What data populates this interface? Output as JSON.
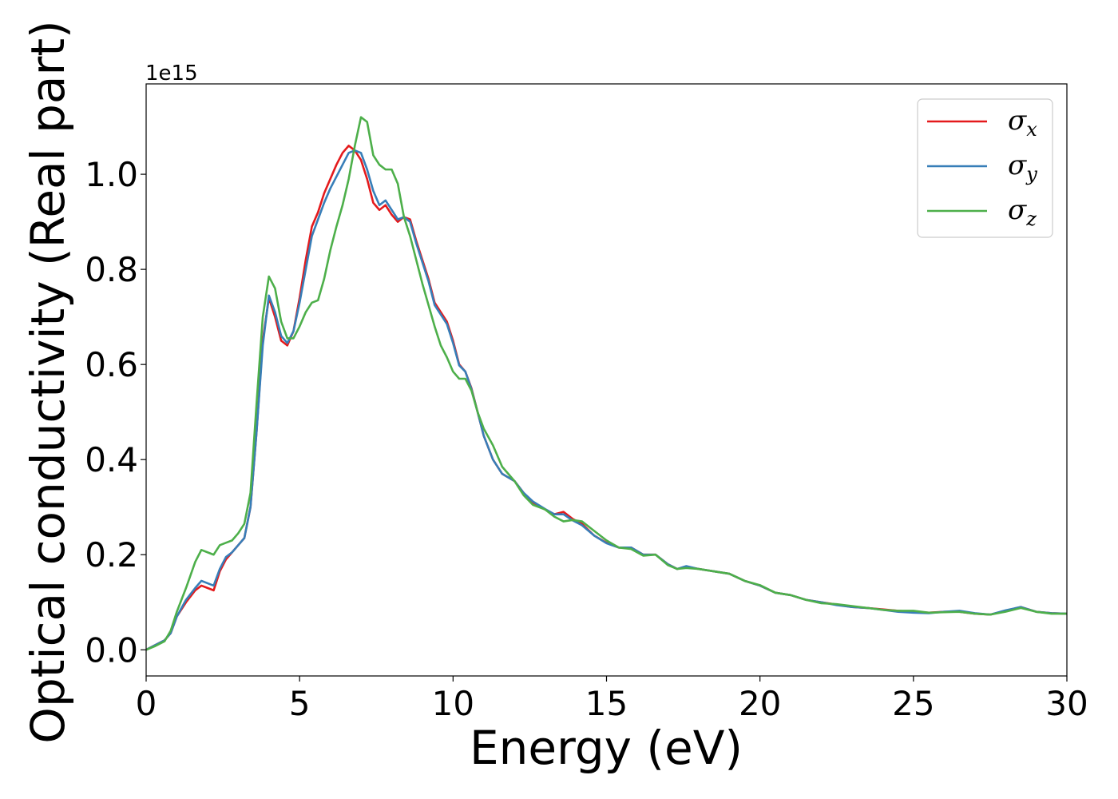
{
  "chart_data": {
    "type": "line",
    "xlabel": "Energy (eV)",
    "ylabel": "Optical conductivity (Real part)",
    "y_offset_text": "1e15",
    "xlim": [
      0,
      30
    ],
    "ylim": [
      -0.055,
      1.19
    ],
    "xticks": [
      0,
      5,
      10,
      15,
      20,
      25,
      30
    ],
    "xtick_labels": [
      "0",
      "5",
      "10",
      "15",
      "20",
      "25",
      "30"
    ],
    "yticks": [
      0.0,
      0.2,
      0.4,
      0.6,
      0.8,
      1.0
    ],
    "ytick_labels": [
      "0.0",
      "0.2",
      "0.4",
      "0.6",
      "0.8",
      "1.0"
    ],
    "grid": false,
    "legend_position": "top-right",
    "series": [
      {
        "name": "σx",
        "legend_symbol": "σ",
        "legend_sub": "x",
        "color": "#e41a1c",
        "x": [
          0,
          0.3,
          0.6,
          0.8,
          1.0,
          1.3,
          1.6,
          1.8,
          2.0,
          2.2,
          2.4,
          2.6,
          2.8,
          3.0,
          3.2,
          3.4,
          3.6,
          3.8,
          4.0,
          4.2,
          4.4,
          4.6,
          4.8,
          5.0,
          5.2,
          5.4,
          5.6,
          5.8,
          6.0,
          6.2,
          6.4,
          6.6,
          6.8,
          7.0,
          7.2,
          7.4,
          7.6,
          7.8,
          8.0,
          8.2,
          8.4,
          8.6,
          8.8,
          9.0,
          9.2,
          9.4,
          9.6,
          9.8,
          10.0,
          10.2,
          10.4,
          10.6,
          10.8,
          11.0,
          11.3,
          11.6,
          12.0,
          12.3,
          12.6,
          13.0,
          13.3,
          13.6,
          13.9,
          14.2,
          14.6,
          15.0,
          15.4,
          15.8,
          16.2,
          16.6,
          17.0,
          17.3,
          17.6,
          18.0,
          18.5,
          19.0,
          19.5,
          20.0,
          20.5,
          21.0,
          21.5,
          22.0,
          22.5,
          23.0,
          23.5,
          24.0,
          24.5,
          25.0,
          25.5,
          26.0,
          26.5,
          27.0,
          27.5,
          28.0,
          28.5,
          29.0,
          29.5,
          30.0
        ],
        "y": [
          0.0,
          0.01,
          0.02,
          0.035,
          0.07,
          0.1,
          0.125,
          0.135,
          0.13,
          0.125,
          0.165,
          0.19,
          0.205,
          0.22,
          0.235,
          0.3,
          0.46,
          0.65,
          0.74,
          0.7,
          0.65,
          0.64,
          0.67,
          0.74,
          0.82,
          0.89,
          0.92,
          0.96,
          0.99,
          1.02,
          1.045,
          1.06,
          1.05,
          1.03,
          0.99,
          0.94,
          0.925,
          0.935,
          0.915,
          0.9,
          0.91,
          0.905,
          0.86,
          0.82,
          0.78,
          0.73,
          0.71,
          0.69,
          0.65,
          0.6,
          0.585,
          0.55,
          0.5,
          0.45,
          0.4,
          0.37,
          0.355,
          0.33,
          0.31,
          0.295,
          0.285,
          0.29,
          0.275,
          0.265,
          0.24,
          0.225,
          0.215,
          0.215,
          0.2,
          0.2,
          0.18,
          0.17,
          0.175,
          0.17,
          0.165,
          0.16,
          0.145,
          0.135,
          0.12,
          0.115,
          0.105,
          0.1,
          0.095,
          0.09,
          0.088,
          0.085,
          0.082,
          0.08,
          0.078,
          0.08,
          0.08,
          0.076,
          0.074,
          0.082,
          0.09,
          0.08,
          0.077,
          0.076
        ]
      },
      {
        "name": "σy",
        "legend_symbol": "σ",
        "legend_sub": "y",
        "color": "#377eb8",
        "x": [
          0,
          0.3,
          0.6,
          0.8,
          1.0,
          1.3,
          1.6,
          1.8,
          2.0,
          2.2,
          2.4,
          2.6,
          2.8,
          3.0,
          3.2,
          3.4,
          3.6,
          3.8,
          4.0,
          4.2,
          4.4,
          4.6,
          4.8,
          5.0,
          5.2,
          5.4,
          5.6,
          5.8,
          6.0,
          6.2,
          6.4,
          6.6,
          6.8,
          7.0,
          7.2,
          7.4,
          7.6,
          7.8,
          8.0,
          8.2,
          8.4,
          8.6,
          8.8,
          9.0,
          9.2,
          9.4,
          9.6,
          9.8,
          10.0,
          10.2,
          10.4,
          10.6,
          10.8,
          11.0,
          11.3,
          11.6,
          12.0,
          12.3,
          12.6,
          13.0,
          13.3,
          13.6,
          13.9,
          14.2,
          14.6,
          15.0,
          15.4,
          15.8,
          16.2,
          16.6,
          17.0,
          17.3,
          17.6,
          18.0,
          18.5,
          19.0,
          19.5,
          20.0,
          20.5,
          21.0,
          21.5,
          22.0,
          22.5,
          23.0,
          23.5,
          24.0,
          24.5,
          25.0,
          25.5,
          26.0,
          26.5,
          27.0,
          27.5,
          28.0,
          28.5,
          29.0,
          29.5,
          30.0
        ],
        "y": [
          0.0,
          0.01,
          0.02,
          0.035,
          0.07,
          0.105,
          0.13,
          0.145,
          0.14,
          0.135,
          0.17,
          0.195,
          0.205,
          0.22,
          0.235,
          0.3,
          0.46,
          0.64,
          0.745,
          0.71,
          0.66,
          0.645,
          0.67,
          0.73,
          0.8,
          0.87,
          0.905,
          0.94,
          0.97,
          0.995,
          1.02,
          1.045,
          1.05,
          1.045,
          1.01,
          0.965,
          0.935,
          0.945,
          0.925,
          0.905,
          0.91,
          0.9,
          0.855,
          0.815,
          0.775,
          0.725,
          0.705,
          0.685,
          0.645,
          0.598,
          0.585,
          0.548,
          0.5,
          0.45,
          0.4,
          0.37,
          0.355,
          0.33,
          0.312,
          0.296,
          0.285,
          0.285,
          0.272,
          0.262,
          0.24,
          0.224,
          0.215,
          0.215,
          0.2,
          0.2,
          0.18,
          0.17,
          0.176,
          0.17,
          0.165,
          0.16,
          0.145,
          0.135,
          0.12,
          0.115,
          0.105,
          0.1,
          0.094,
          0.09,
          0.088,
          0.084,
          0.08,
          0.078,
          0.077,
          0.08,
          0.082,
          0.077,
          0.074,
          0.083,
          0.09,
          0.08,
          0.077,
          0.076
        ]
      },
      {
        "name": "σz",
        "legend_symbol": "σ",
        "legend_sub": "z",
        "color": "#4daf4a",
        "x": [
          0,
          0.3,
          0.6,
          0.8,
          1.0,
          1.3,
          1.6,
          1.8,
          2.0,
          2.2,
          2.4,
          2.6,
          2.8,
          3.0,
          3.2,
          3.4,
          3.6,
          3.8,
          4.0,
          4.2,
          4.4,
          4.6,
          4.8,
          5.0,
          5.2,
          5.4,
          5.6,
          5.8,
          6.0,
          6.2,
          6.4,
          6.6,
          6.8,
          7.0,
          7.2,
          7.4,
          7.6,
          7.8,
          8.0,
          8.2,
          8.4,
          8.6,
          8.8,
          9.0,
          9.2,
          9.4,
          9.6,
          9.8,
          10.0,
          10.2,
          10.4,
          10.6,
          10.8,
          11.0,
          11.3,
          11.6,
          12.0,
          12.3,
          12.6,
          13.0,
          13.3,
          13.6,
          13.9,
          14.2,
          14.6,
          15.0,
          15.4,
          15.8,
          16.2,
          16.6,
          17.0,
          17.3,
          17.6,
          18.0,
          18.5,
          19.0,
          19.5,
          20.0,
          20.5,
          21.0,
          21.5,
          22.0,
          22.5,
          23.0,
          23.5,
          24.0,
          24.5,
          25.0,
          25.5,
          26.0,
          26.5,
          27.0,
          27.5,
          28.0,
          28.5,
          29.0,
          29.5,
          30.0
        ],
        "y": [
          0.0,
          0.008,
          0.018,
          0.04,
          0.08,
          0.13,
          0.185,
          0.21,
          0.205,
          0.2,
          0.22,
          0.225,
          0.23,
          0.245,
          0.265,
          0.33,
          0.52,
          0.7,
          0.785,
          0.76,
          0.69,
          0.655,
          0.655,
          0.68,
          0.71,
          0.73,
          0.735,
          0.78,
          0.84,
          0.89,
          0.935,
          0.99,
          1.06,
          1.12,
          1.11,
          1.04,
          1.02,
          1.01,
          1.01,
          0.98,
          0.91,
          0.87,
          0.82,
          0.77,
          0.725,
          0.68,
          0.64,
          0.615,
          0.585,
          0.57,
          0.57,
          0.545,
          0.5,
          0.465,
          0.43,
          0.385,
          0.355,
          0.325,
          0.305,
          0.295,
          0.28,
          0.27,
          0.273,
          0.27,
          0.25,
          0.23,
          0.215,
          0.212,
          0.198,
          0.2,
          0.178,
          0.17,
          0.172,
          0.17,
          0.165,
          0.16,
          0.145,
          0.136,
          0.12,
          0.115,
          0.105,
          0.098,
          0.096,
          0.092,
          0.088,
          0.084,
          0.082,
          0.082,
          0.078,
          0.079,
          0.08,
          0.076,
          0.074,
          0.08,
          0.088,
          0.08,
          0.076,
          0.076
        ]
      }
    ]
  }
}
